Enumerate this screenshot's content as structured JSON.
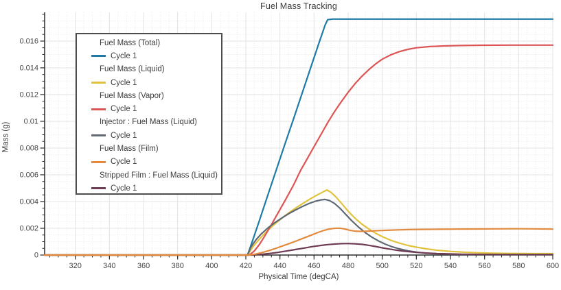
{
  "title": "Fuel Mass Tracking",
  "chart_data": {
    "type": "line",
    "title": "Fuel Mass Tracking",
    "xlabel": "Physical Time (degCA)",
    "ylabel": "Mass (g)",
    "xlim": [
      302,
      600
    ],
    "ylim": [
      0,
      0.01815
    ],
    "grid": {
      "major": "solid",
      "minor": "dotted"
    },
    "legend_position": "upper left inside",
    "x_ticks": {
      "values": [
        320,
        340,
        360,
        380,
        400,
        420,
        440,
        460,
        480,
        500,
        520,
        540,
        560,
        580,
        600
      ],
      "labels": [
        "320",
        "340",
        "360",
        "380",
        "400",
        "420",
        "440",
        "460",
        "480",
        "500",
        "520",
        "540",
        "560",
        "580",
        "600"
      ],
      "minor_step": 5
    },
    "y_ticks": {
      "values": [
        0,
        0.002,
        0.004,
        0.006,
        0.008,
        0.01,
        0.012,
        0.014,
        0.016
      ],
      "labels": [
        "0",
        "0.002",
        "0.004",
        "0.006",
        "0.008",
        "0.01",
        "0.012",
        "0.014",
        "0.016"
      ],
      "minor_step": 0.0005
    },
    "series": [
      {
        "name": "Fuel Mass (Total)",
        "cycle": "Cycle 1",
        "color": "#1d7ba6",
        "points": [
          [
            302,
            0
          ],
          [
            421,
            0
          ],
          [
            424,
            0.0011
          ],
          [
            428,
            0.0026
          ],
          [
            433,
            0.00452
          ],
          [
            438,
            0.00642
          ],
          [
            443,
            0.00832
          ],
          [
            448,
            0.0102
          ],
          [
            453,
            0.0121
          ],
          [
            458,
            0.014
          ],
          [
            463,
            0.0159
          ],
          [
            466.5,
            0.0172
          ],
          [
            468,
            0.0176
          ],
          [
            471,
            0.01765
          ],
          [
            600,
            0.01765
          ]
        ]
      },
      {
        "name": "Fuel Mass (Liquid)",
        "cycle": "Cycle 1",
        "color": "#e0c23c",
        "points": [
          [
            302,
            0
          ],
          [
            421,
            0
          ],
          [
            424,
            0.0006
          ],
          [
            427,
            0.00105
          ],
          [
            430,
            0.00148
          ],
          [
            434,
            0.00198
          ],
          [
            438,
            0.00243
          ],
          [
            442,
            0.00285
          ],
          [
            446,
            0.00323
          ],
          [
            450,
            0.00358
          ],
          [
            454,
            0.0039
          ],
          [
            458,
            0.00422
          ],
          [
            462,
            0.0045
          ],
          [
            465,
            0.0047
          ],
          [
            467.5,
            0.00487
          ],
          [
            470,
            0.00468
          ],
          [
            473,
            0.00432
          ],
          [
            476,
            0.00388
          ],
          [
            480,
            0.00328
          ],
          [
            484,
            0.00276
          ],
          [
            488,
            0.00232
          ],
          [
            492,
            0.00196
          ],
          [
            496,
            0.00164
          ],
          [
            500,
            0.00138
          ],
          [
            505,
            0.0011
          ],
          [
            510,
            0.00089
          ],
          [
            515,
            0.00072
          ],
          [
            520,
            0.00059
          ],
          [
            526,
            0.00046
          ],
          [
            532,
            0.00036
          ],
          [
            540,
            0.00027
          ],
          [
            548,
            0.00021
          ],
          [
            556,
            0.00017
          ],
          [
            565,
            0.00014
          ],
          [
            575,
            0.00012
          ],
          [
            588,
            0.0001
          ],
          [
            600,
            0.0001
          ]
        ]
      },
      {
        "name": "Fuel Mass (Vapor)",
        "cycle": "Cycle 1",
        "color": "#dd5454",
        "points": [
          [
            302,
            0
          ],
          [
            422,
            0
          ],
          [
            425,
            0.0003
          ],
          [
            428,
            0.0008
          ],
          [
            431,
            0.0014
          ],
          [
            434,
            0.00205
          ],
          [
            437,
            0.00272
          ],
          [
            440,
            0.0034
          ],
          [
            444,
            0.0043
          ],
          [
            448,
            0.00525
          ],
          [
            452,
            0.0063
          ],
          [
            456,
            0.0072
          ],
          [
            460,
            0.0081
          ],
          [
            464,
            0.009
          ],
          [
            468,
            0.0099
          ],
          [
            472,
            0.01072
          ],
          [
            476,
            0.01147
          ],
          [
            480,
            0.01217
          ],
          [
            484,
            0.0128
          ],
          [
            488,
            0.01336
          ],
          [
            492,
            0.01385
          ],
          [
            496,
            0.01428
          ],
          [
            500,
            0.01465
          ],
          [
            505,
            0.01497
          ],
          [
            510,
            0.01521
          ],
          [
            515,
            0.01538
          ],
          [
            520,
            0.0155
          ],
          [
            528,
            0.01559
          ],
          [
            536,
            0.01564
          ],
          [
            546,
            0.01567
          ],
          [
            558,
            0.01569
          ],
          [
            575,
            0.0157
          ],
          [
            600,
            0.0157
          ]
        ]
      },
      {
        "name": "Injector : Fuel Mass (Liquid)",
        "cycle": "Cycle 1",
        "color": "#5e6973",
        "points": [
          [
            302,
            0
          ],
          [
            421,
            0
          ],
          [
            423,
            0.0006
          ],
          [
            426,
            0.00115
          ],
          [
            429,
            0.00158
          ],
          [
            433,
            0.00203
          ],
          [
            437,
            0.00242
          ],
          [
            441,
            0.00276
          ],
          [
            445,
            0.00308
          ],
          [
            449,
            0.00336
          ],
          [
            453,
            0.00362
          ],
          [
            457,
            0.00385
          ],
          [
            461,
            0.00403
          ],
          [
            464,
            0.00412
          ],
          [
            466.5,
            0.00416
          ],
          [
            469,
            0.00408
          ],
          [
            472,
            0.00386
          ],
          [
            475,
            0.00352
          ],
          [
            478,
            0.00312
          ],
          [
            482,
            0.00258
          ],
          [
            486,
            0.0021
          ],
          [
            490,
            0.00168
          ],
          [
            494,
            0.00133
          ],
          [
            498,
            0.00104
          ],
          [
            502,
            0.0008
          ],
          [
            506,
            0.00061
          ],
          [
            510,
            0.00046
          ],
          [
            515,
            0.00032
          ],
          [
            520,
            0.00022
          ],
          [
            526,
            0.00014
          ],
          [
            533,
            9e-05
          ],
          [
            540,
            6e-05
          ],
          [
            550,
            4e-05
          ],
          [
            565,
            3e-05
          ],
          [
            600,
            3e-05
          ]
        ]
      },
      {
        "name": "Fuel Mass (Film)",
        "cycle": "Cycle 1",
        "color": "#e28a3d",
        "points": [
          [
            302,
            0
          ],
          [
            422,
            0
          ],
          [
            426,
            8e-05
          ],
          [
            430,
            0.0002
          ],
          [
            434,
            0.00035
          ],
          [
            438,
            0.00052
          ],
          [
            442,
            0.0007
          ],
          [
            446,
            0.00088
          ],
          [
            450,
            0.00107
          ],
          [
            454,
            0.00127
          ],
          [
            458,
            0.00147
          ],
          [
            462,
            0.00167
          ],
          [
            466,
            0.00185
          ],
          [
            469,
            0.00195
          ],
          [
            472,
            0.002
          ],
          [
            475,
            0.00201
          ],
          [
            478,
            0.00195
          ],
          [
            481,
            0.00185
          ],
          [
            484,
            0.00179
          ],
          [
            487,
            0.00177
          ],
          [
            490,
            0.00178
          ],
          [
            494,
            0.0018
          ],
          [
            498,
            0.00183
          ],
          [
            503,
            0.00185
          ],
          [
            509,
            0.00188
          ],
          [
            516,
            0.0019
          ],
          [
            524,
            0.00192
          ],
          [
            533,
            0.00193
          ],
          [
            543,
            0.00194
          ],
          [
            554,
            0.00195
          ],
          [
            566,
            0.00196
          ],
          [
            578,
            0.00197
          ],
          [
            588,
            0.00196
          ],
          [
            600,
            0.00194
          ]
        ]
      },
      {
        "name": "Stripped Film : Fuel Mass (Liquid)",
        "cycle": "Cycle 1",
        "color": "#6e3b54",
        "points": [
          [
            302,
            0
          ],
          [
            424,
            0
          ],
          [
            429,
            5e-05
          ],
          [
            434,
            0.00012
          ],
          [
            439,
            0.0002
          ],
          [
            444,
            0.0003
          ],
          [
            449,
            0.00041
          ],
          [
            454,
            0.00052
          ],
          [
            459,
            0.00063
          ],
          [
            464,
            0.00072
          ],
          [
            468,
            0.00078
          ],
          [
            472,
            0.00082
          ],
          [
            476,
            0.00085
          ],
          [
            480,
            0.00086
          ],
          [
            484,
            0.00084
          ],
          [
            488,
            0.0008
          ],
          [
            492,
            0.00073
          ],
          [
            496,
            0.00064
          ],
          [
            500,
            0.00054
          ],
          [
            504,
            0.00045
          ],
          [
            508,
            0.00037
          ],
          [
            512,
            0.0003
          ],
          [
            516,
            0.00025
          ],
          [
            521,
            0.00019
          ],
          [
            526,
            0.00015
          ],
          [
            532,
            0.00011
          ],
          [
            539,
            8e-05
          ],
          [
            547,
            6e-05
          ],
          [
            556,
            5e-05
          ],
          [
            570,
            4e-05
          ],
          [
            600,
            4e-05
          ]
        ]
      }
    ]
  },
  "style": {
    "axis_color": "#2a2a2a",
    "tick_label_color": "#454545",
    "major_grid_color": "#e3e3e3",
    "minor_grid_color": "#ebe8e5",
    "legend_border_color": "#4d4d4d",
    "background": "#ffffff"
  }
}
